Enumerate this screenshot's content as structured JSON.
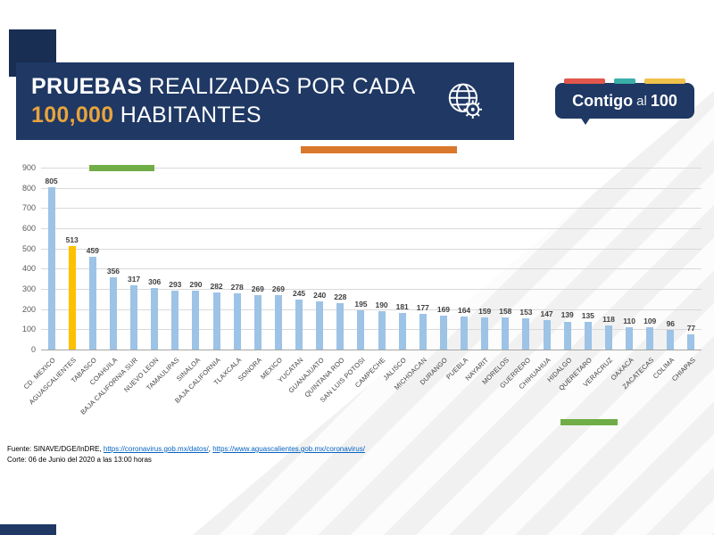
{
  "header": {
    "title_bold": "PRUEBAS",
    "title_rest": " REALIZADAS POR CADA",
    "title2_accent": "100,000",
    "title2_rest": " HABITANTES"
  },
  "logo": {
    "contigo": "Contigo",
    "al": "al",
    "hundred": "100"
  },
  "chart_data": {
    "type": "bar",
    "title": "PRUEBAS REALIZADAS POR CADA 100,000 HABITANTES",
    "categories": [
      "CD. MEXICO",
      "AGUASCALIENTES",
      "TABASCO",
      "COAHUILA",
      "BAJA CALIFORNIA SUR",
      "NUEVO LEON",
      "TAMAULIPAS",
      "SINALOA",
      "BAJA CALIFORNIA",
      "TLAXCALA",
      "SONORA",
      "MEXICO",
      "YUCATAN",
      "GUANAJUATO",
      "QUINTANA ROO",
      "SAN LUIS POTOSI",
      "CAMPECHE",
      "JALISCO",
      "MICHOACAN",
      "DURANGO",
      "PUEBLA",
      "NAYARIT",
      "MORELOS",
      "GUERRERO",
      "CHIHUAHUA",
      "HIDALGO",
      "QUERETARO",
      "VERACRUZ",
      "OAXACA",
      "ZACATECAS",
      "COLIMA",
      "CHIAPAS"
    ],
    "values": [
      805,
      513,
      459,
      356,
      317,
      306,
      293,
      290,
      282,
      278,
      269,
      269,
      245,
      240,
      228,
      195,
      190,
      181,
      177,
      169,
      164,
      159,
      158,
      153,
      147,
      139,
      135,
      118,
      110,
      109,
      96,
      77
    ],
    "ylim": [
      0,
      900
    ],
    "ytick_step": 100,
    "grid": true,
    "bar_color": "#9DC3E6",
    "highlight": {
      "index": 1,
      "color": "#FFC000"
    },
    "value_labels": true,
    "legend": "none"
  },
  "footer": {
    "source_prefix": "Fuente: SINAVE/DGE/InDRE, ",
    "link1": "https://coronavirus.gob.mx/datos/",
    "sep": ", ",
    "link2": "https://www.aguascalientes.gob.mx/coronavirus/",
    "cutoff": "Corte: 06 de Junio del 2020 a las 13:00 horas"
  },
  "colors": {
    "navy": "#1F3864",
    "title_orange": "#E8A33D",
    "orange_accent": "#D9782D",
    "green_accent": "#70AD47",
    "bar_blue": "#9DC3E6",
    "bar_yellow": "#FFC000"
  }
}
